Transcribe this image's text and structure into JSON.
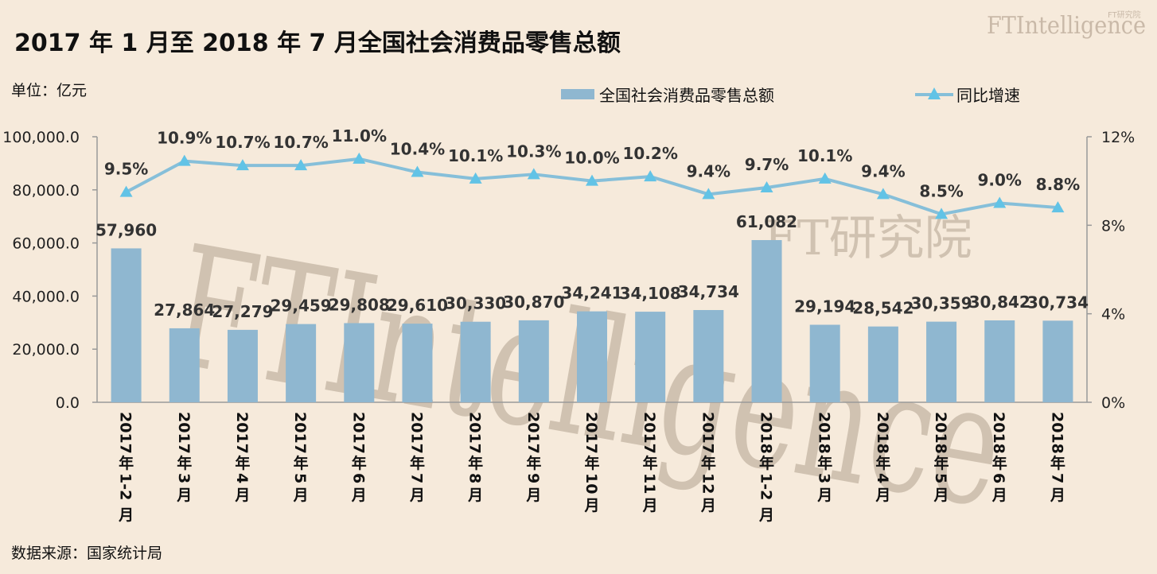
{
  "header": {
    "title": "2017 年 1 月至 2018 年 7 月全国社会消费品零售总额",
    "unit": "单位：亿元",
    "source": "数据来源：国家统计局",
    "logo": "FTIntelligence",
    "logo_cn": "FT研究院"
  },
  "watermark": {
    "main": "FTIntelligence",
    "cn": "FT研究院"
  },
  "colors": {
    "bar": "#8fb7d0",
    "line": "#86bfd9",
    "marker": "#62c3e6",
    "background": "#f6eadb"
  },
  "chart_data": {
    "type": "bar",
    "categories": [
      "2017 年 1-2 月",
      "2017 年 3 月",
      "2017 年 4 月",
      "2017 年 5 月",
      "2017 年 6 月",
      "2017 年 7 月",
      "2017 年 8 月",
      "2017 年 9 月",
      "2017 年 10 月",
      "2017 年 11 月",
      "2017 年 12 月",
      "2018 年 1-2 月",
      "2018 年 3 月",
      "2018 年 4 月",
      "2018 年 5 月",
      "2018 年 6 月",
      "2018 年 7 月"
    ],
    "series": [
      {
        "name": "全国社会消费品零售总额",
        "type": "bar",
        "axis": "left",
        "values": [
          57960,
          27864,
          27279,
          29459,
          29808,
          29610,
          30330,
          30870,
          34241,
          34108,
          34734,
          61082,
          29194,
          28542,
          30359,
          30842,
          30734
        ],
        "labels": [
          "57,960",
          "27,864",
          "27,279",
          "29,459",
          "29,808",
          "29,610",
          "30,330",
          "30,870",
          "34,241",
          "34,108",
          "34,734",
          "61,082",
          "29,194",
          "28,542",
          "30,359",
          "30,842",
          "30,734"
        ]
      },
      {
        "name": "同比增速",
        "type": "line",
        "axis": "right",
        "values": [
          9.5,
          10.9,
          10.7,
          10.7,
          11.0,
          10.4,
          10.1,
          10.3,
          10.0,
          10.2,
          9.4,
          9.7,
          10.1,
          9.4,
          8.5,
          9.0,
          8.8
        ],
        "labels": [
          "9.5%",
          "10.9%",
          "10.7%",
          "10.7%",
          "11.0%",
          "10.4%",
          "10.1%",
          "10.3%",
          "10.0%",
          "10.2%",
          "9.4%",
          "9.7%",
          "10.1%",
          "9.4%",
          "8.5%",
          "9.0%",
          "8.8%"
        ]
      }
    ],
    "y_left": {
      "range": [
        0,
        100000
      ],
      "ticks": [
        0,
        20000,
        40000,
        60000,
        80000,
        100000
      ],
      "tick_labels": [
        "0.0",
        "20,000.0",
        "40,000.0",
        "60,000.0",
        "80,000.0",
        "100,000.0"
      ]
    },
    "y_right": {
      "range": [
        0,
        12
      ],
      "ticks": [
        0,
        4,
        8,
        12
      ],
      "tick_labels": [
        "0%",
        "4%",
        "8%",
        "12%"
      ]
    },
    "grid": false,
    "legend": "top-center"
  }
}
